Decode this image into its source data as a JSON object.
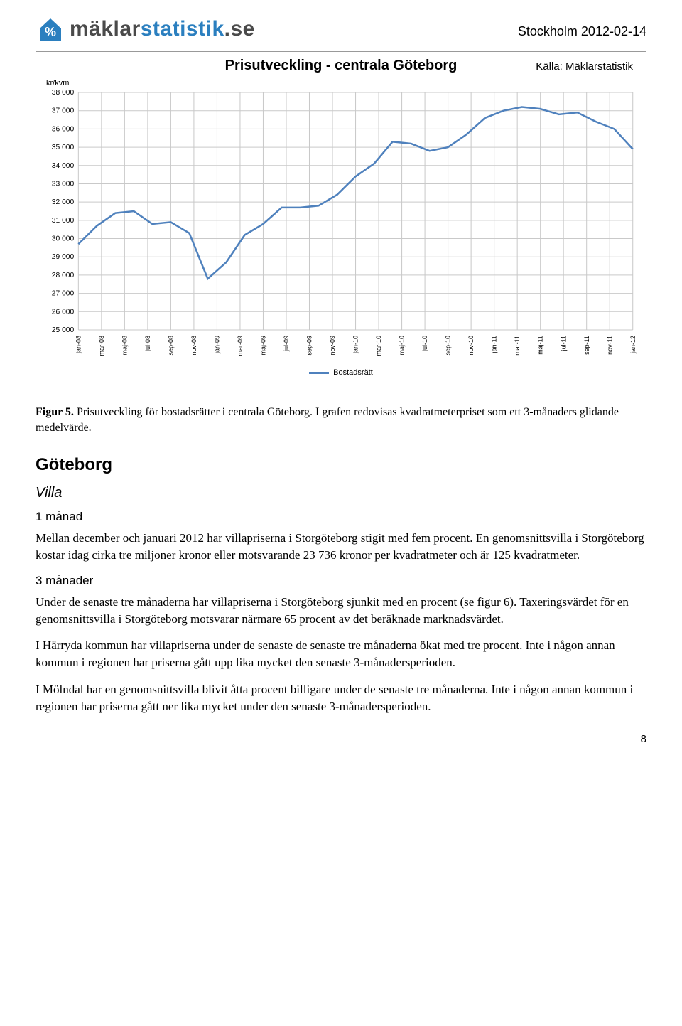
{
  "header": {
    "logo_brand_primary": "mäklar",
    "logo_brand_secondary": "statistik",
    "logo_tld": ".se",
    "logo_primary_color": "#4a4a4a",
    "logo_secondary_color": "#2b7fbf",
    "date_location": "Stockholm 2012-02-14"
  },
  "chart": {
    "type": "line",
    "title": "Prisutveckling - centrala Göteborg",
    "source_label": "Källa: Mäklarstatistik",
    "ylabel": "kr/kvm",
    "legend_label": "Bostadsrätt",
    "line_color": "#4f81bd",
    "grid_color": "#c9c9c9",
    "background_color": "#ffffff",
    "ylim": [
      25000,
      38000
    ],
    "ytick_step": 1000,
    "yticks": [
      "25 000",
      "26 000",
      "27 000",
      "28 000",
      "29 000",
      "30 000",
      "31 000",
      "32 000",
      "33 000",
      "34 000",
      "35 000",
      "36 000",
      "37 000",
      "38 000"
    ],
    "xticks": [
      "jan-08",
      "mar-08",
      "maj-08",
      "jul-08",
      "sep-08",
      "nov-08",
      "jan-09",
      "mar-09",
      "maj-09",
      "jul-09",
      "sep-09",
      "nov-09",
      "jan-10",
      "mar-10",
      "maj-10",
      "jul-10",
      "sep-10",
      "nov-10",
      "jan-11",
      "mar-11",
      "maj-11",
      "jul-11",
      "sep-11",
      "nov-11",
      "jan-12"
    ],
    "values": [
      29700,
      30700,
      31400,
      31500,
      30800,
      30900,
      30300,
      27800,
      28700,
      30200,
      30800,
      31700,
      31700,
      31800,
      32400,
      33400,
      34100,
      35300,
      35200,
      34800,
      35000,
      35700,
      36600,
      37000,
      37200,
      37100,
      36800,
      36900,
      36400,
      36000,
      34900
    ]
  },
  "caption": {
    "fig_label": "Figur 5.",
    "text": "Prisutveckling för bostadsrätter i centrala Göteborg. I grafen redovisas kvadratmeterpriset som ett 3-månaders glidande medelvärde."
  },
  "section": {
    "h2": "Göteborg",
    "h3": "Villa",
    "h4a": "1 månad",
    "p1": "Mellan december och januari 2012 har villapriserna i Storgöteborg stigit med fem procent. En genomsnittsvilla i Storgöteborg kostar idag cirka tre miljoner kronor eller motsvarande 23 736 kronor per kvadratmeter och är 125 kvadratmeter.",
    "h4b": "3 månader",
    "p2": "Under de senaste tre månaderna har villapriserna i Storgöteborg sjunkit med en procent (se figur 6). Taxeringsvärdet för en genomsnittsvilla i Storgöteborg motsvarar närmare 65 procent av det beräknade marknadsvärdet.",
    "p3": "I Härryda kommun har villapriserna under de senaste de senaste tre månaderna ökat med tre procent. Inte i någon annan kommun i regionen har priserna gått upp lika mycket den senaste 3-månadersperioden.",
    "p4": "I Mölndal har en genomsnittsvilla blivit åtta procent billigare under de senaste tre månaderna. Inte i någon annan kommun i regionen har priserna gått ner lika mycket under den senaste 3-månadersperioden."
  },
  "page_number": "8"
}
